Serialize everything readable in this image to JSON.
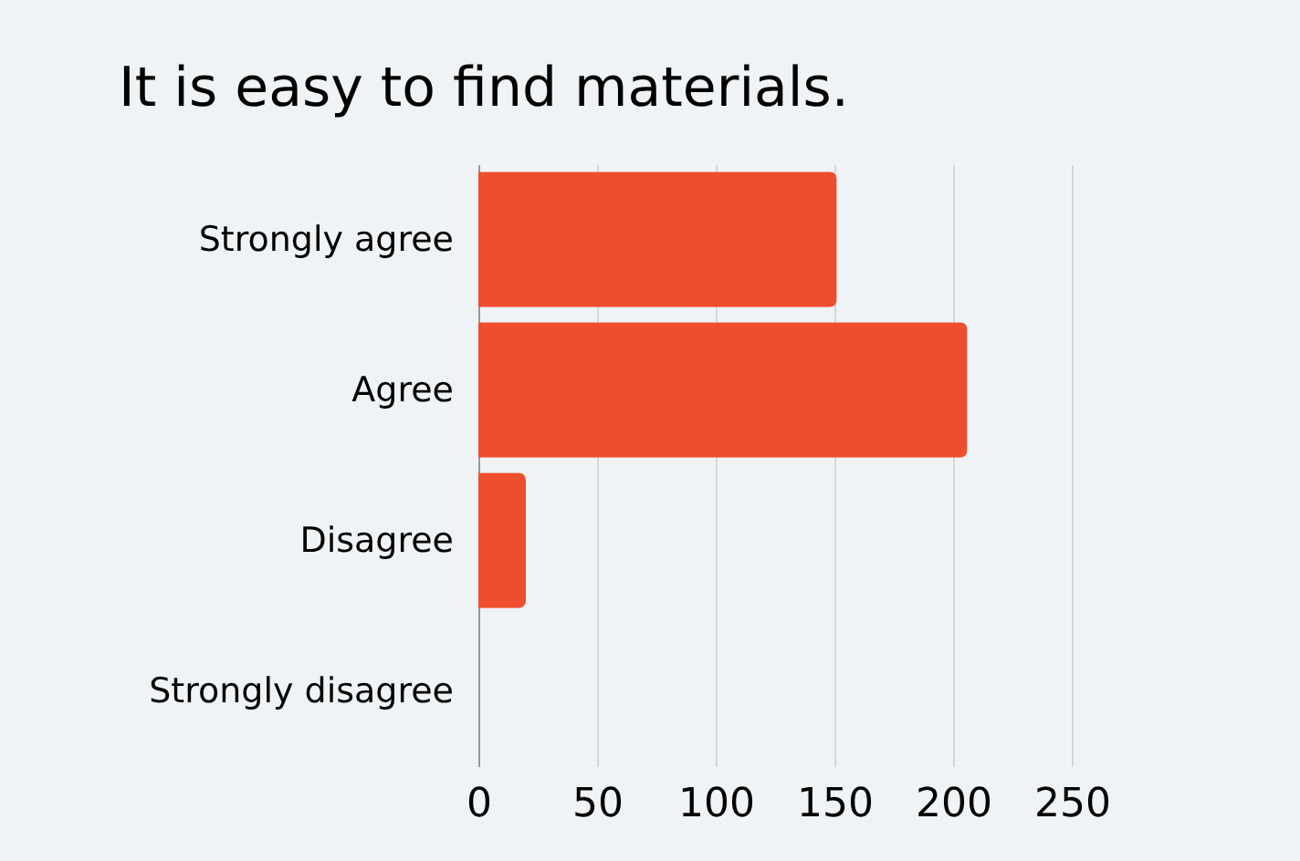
{
  "chart_data": {
    "type": "bar",
    "orientation": "horizontal",
    "title": "It is easy to find materials.",
    "categories": [
      "Strongly agree",
      "Agree",
      "Disagree",
      "Strongly disagree"
    ],
    "values": [
      151,
      206,
      20,
      0
    ],
    "color": "#ef4e2e",
    "xlim": [
      0,
      250
    ],
    "xticks": [
      0,
      50,
      100,
      150,
      200,
      250
    ],
    "grid": "x"
  }
}
